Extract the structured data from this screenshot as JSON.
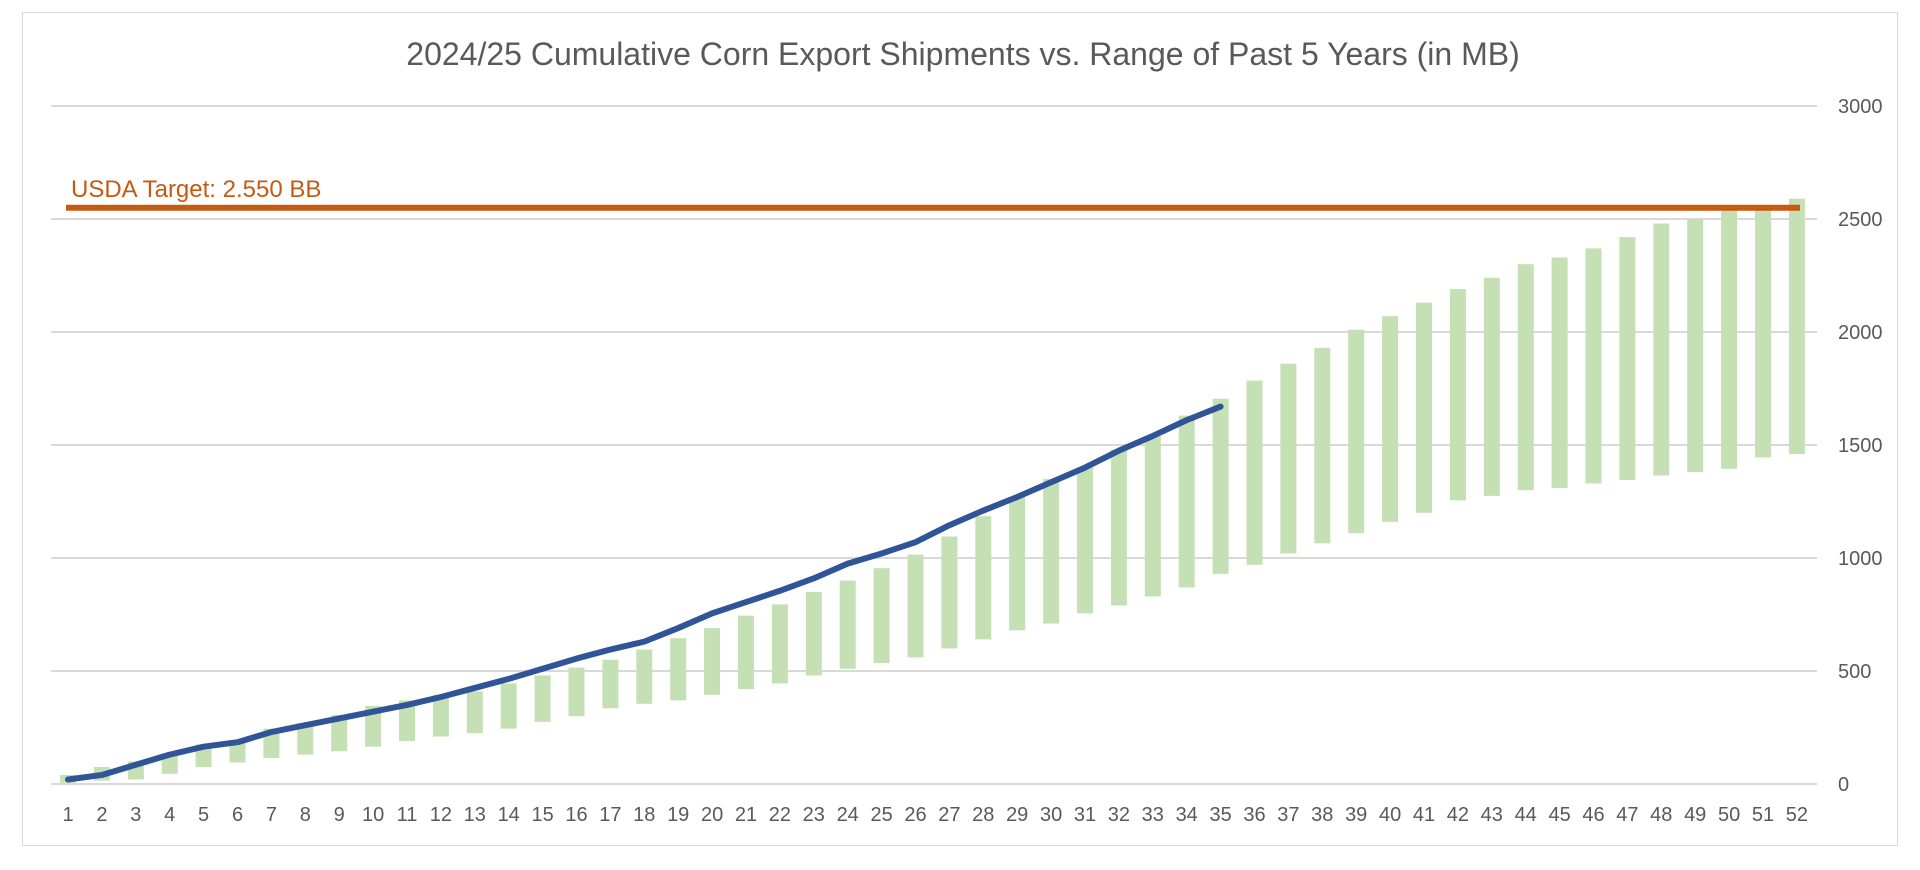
{
  "chart_data": {
    "type": "bar",
    "title": "2024/25 Cumulative Corn Export Shipments vs. Range of Past 5 Years (in MB)",
    "xlabel": "",
    "ylabel": "",
    "ylim": [
      0,
      3000
    ],
    "yticks": [
      0,
      500,
      1000,
      1500,
      2000,
      2500,
      3000
    ],
    "y_axis_position": "right",
    "grid": true,
    "legend": "none",
    "categories": [
      "1",
      "2",
      "3",
      "4",
      "5",
      "6",
      "7",
      "8",
      "9",
      "10",
      "11",
      "12",
      "13",
      "14",
      "15",
      "16",
      "17",
      "18",
      "19",
      "20",
      "21",
      "22",
      "23",
      "24",
      "25",
      "26",
      "27",
      "28",
      "29",
      "30",
      "31",
      "32",
      "33",
      "34",
      "35",
      "36",
      "37",
      "38",
      "39",
      "40",
      "41",
      "42",
      "43",
      "44",
      "45",
      "46",
      "47",
      "48",
      "49",
      "50",
      "51",
      "52"
    ],
    "range_low": [
      5,
      15,
      20,
      45,
      75,
      95,
      115,
      130,
      145,
      165,
      190,
      210,
      225,
      245,
      275,
      300,
      335,
      355,
      370,
      395,
      420,
      445,
      480,
      510,
      535,
      560,
      600,
      640,
      680,
      710,
      755,
      790,
      830,
      870,
      930,
      970,
      1020,
      1065,
      1110,
      1160,
      1200,
      1255,
      1275,
      1300,
      1310,
      1330,
      1345,
      1365,
      1380,
      1395,
      1445,
      1460
    ],
    "range_high": [
      40,
      75,
      100,
      125,
      175,
      195,
      245,
      270,
      305,
      345,
      370,
      395,
      410,
      445,
      480,
      515,
      550,
      595,
      645,
      690,
      745,
      795,
      850,
      900,
      955,
      1015,
      1095,
      1185,
      1270,
      1350,
      1400,
      1480,
      1540,
      1630,
      1705,
      1785,
      1860,
      1930,
      2010,
      2070,
      2130,
      2190,
      2240,
      2300,
      2330,
      2370,
      2420,
      2480,
      2500,
      2540,
      2560,
      2590
    ],
    "current": [
      20,
      40,
      85,
      130,
      165,
      185,
      230,
      260,
      290,
      320,
      350,
      385,
      425,
      465,
      510,
      555,
      595,
      630,
      690,
      755,
      805,
      855,
      910,
      975,
      1020,
      1070,
      1145,
      1210,
      1270,
      1335,
      1400,
      1475,
      1540,
      1610,
      1670
    ],
    "target": 2550,
    "target_label": "USDA Target: 2.550 BB",
    "colors": {
      "range_bars": "#c5e0b4",
      "current_line": "#2f5597",
      "target_line": "#c55a11",
      "grid": "#d9d9d9",
      "text": "#595959"
    }
  }
}
